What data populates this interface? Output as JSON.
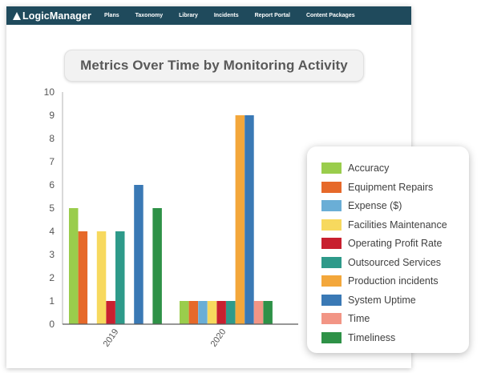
{
  "navbar": {
    "brand": "LogicManager",
    "items": [
      "Plans",
      "Taxonomy",
      "Library",
      "Incidents",
      "Report Portal",
      "Content Packages"
    ]
  },
  "chart_data": {
    "type": "bar",
    "title": "Metrics Over Time by Monitoring Activity",
    "xlabel": "",
    "ylabel": "",
    "categories": [
      "2019",
      "2020"
    ],
    "ylim": [
      0,
      10
    ],
    "yticks": [
      0,
      1,
      2,
      3,
      4,
      5,
      6,
      7,
      8,
      9,
      10
    ],
    "grid": false,
    "legend_position": "right",
    "series": [
      {
        "name": "Accuracy",
        "color": "#9acd4c",
        "values": [
          5,
          1
        ]
      },
      {
        "name": "Equipment Repairs",
        "color": "#e6692a",
        "values": [
          4,
          1
        ]
      },
      {
        "name": "Expense ($)",
        "color": "#6aaed6",
        "values": [
          null,
          1
        ]
      },
      {
        "name": "Facilities Maintenance",
        "color": "#f7d95e",
        "values": [
          4,
          1
        ]
      },
      {
        "name": "Operating Profit Rate",
        "color": "#c8202f",
        "values": [
          1,
          1
        ]
      },
      {
        "name": "Outsourced Services",
        "color": "#2e9a8a",
        "values": [
          4,
          1
        ]
      },
      {
        "name": "Production incidents",
        "color": "#f3a73b",
        "values": [
          null,
          9
        ]
      },
      {
        "name": "System Uptime",
        "color": "#3a79b5",
        "values": [
          6,
          9
        ]
      },
      {
        "name": "Time",
        "color": "#f29585",
        "values": [
          null,
          1
        ]
      },
      {
        "name": "Timeliness",
        "color": "#2e9147",
        "values": [
          5,
          1
        ]
      }
    ]
  }
}
